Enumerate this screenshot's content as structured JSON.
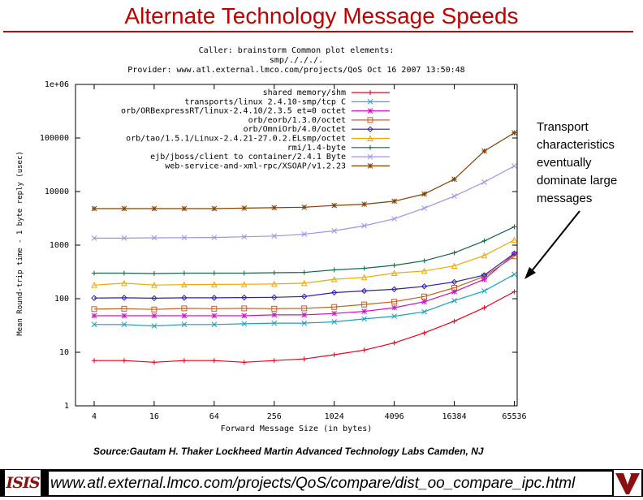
{
  "slide": {
    "title": "Alternate Technology Message Speeds",
    "callout": "Transport characteristics eventually dominate large messages",
    "source": "Source:Gautam H. Thaker Lockheed Martin Advanced Technology Labs Camden, NJ",
    "footer_url": "www.atl.external.lmco.com/projects/QoS/compare/dist_oo_compare_ipc.html",
    "footer_logo_text": "ISIS"
  },
  "chart_data": {
    "type": "line",
    "header_lines": [
      "Caller: brainstorm   Common plot elements:",
      "smp/./././.",
      "Provider: www.atl.external.lmco.com/projects/QoS  Oct 16 2007 13:50:48"
    ],
    "xlabel": "Forward Message Size (in bytes)",
    "ylabel": "Mean Round-trip time - 1 byte reply (usec)",
    "x_scale": "log2",
    "y_scale": "log10",
    "xlim": [
      2.6,
      70000
    ],
    "ylim": [
      1,
      1000000
    ],
    "x_ticks": [
      4,
      16,
      64,
      256,
      1024,
      4096,
      16384,
      65536
    ],
    "x_tick_labels": [
      "4",
      "16",
      "64",
      "256",
      "1024",
      "4096",
      "16384",
      "65536"
    ],
    "y_ticks": [
      1,
      10,
      100,
      1000,
      10000,
      100000,
      1000000
    ],
    "y_tick_labels": [
      "1",
      "10",
      "100",
      "1000",
      "10000",
      "100000",
      "1e+06"
    ],
    "legend_position": "top-left",
    "x": [
      4,
      8,
      16,
      32,
      64,
      128,
      256,
      512,
      1024,
      2048,
      4096,
      8192,
      16384,
      32768,
      65536
    ],
    "series": [
      {
        "name": "shared memory/shm",
        "color": "#e8001c",
        "marker": "plus",
        "values": [
          7,
          7,
          6.5,
          7,
          7,
          6.5,
          7,
          7.5,
          9,
          11,
          15,
          23,
          38,
          68,
          135
        ]
      },
      {
        "name": "transports/linux 2.4.10-smp/tcp C",
        "color": "#1a9fbf",
        "marker": "x",
        "values": [
          33,
          33,
          31,
          33,
          33,
          34,
          35,
          35,
          37,
          42,
          47,
          57,
          92,
          140,
          285
        ]
      },
      {
        "name": "orb/ORBexpressRT/linux-2.4.10/2.3.5 et=0 octet",
        "color": "#d010c8",
        "marker": "star",
        "values": [
          48,
          48,
          48,
          48,
          48,
          48,
          50,
          50,
          53,
          58,
          68,
          88,
          135,
          230,
          680
        ]
      },
      {
        "name": "orb/eorb/1.3.0/octet",
        "color": "#c06020",
        "marker": "square",
        "values": [
          64,
          65,
          63,
          66,
          65,
          66,
          65,
          66,
          70,
          78,
          88,
          110,
          160,
          260,
          620
        ]
      },
      {
        "name": "orb/OmniOrb/4.0/octet",
        "color": "#3020a8",
        "marker": "diamond",
        "values": [
          103,
          104,
          102,
          104,
          104,
          105,
          106,
          110,
          130,
          140,
          150,
          170,
          205,
          275,
          700
        ]
      },
      {
        "name": "orb/tao/1.5.1/Linux-2.4.21-27.0.2.ELsmp/octet",
        "color": "#f0a800",
        "marker": "triangle",
        "values": [
          180,
          195,
          180,
          183,
          185,
          186,
          188,
          195,
          230,
          250,
          300,
          330,
          410,
          640,
          1250
        ]
      },
      {
        "name": "rmi/1.4-byte",
        "color": "#106848",
        "marker": "plus",
        "values": [
          300,
          300,
          295,
          300,
          300,
          300,
          305,
          310,
          345,
          370,
          420,
          510,
          720,
          1200,
          2200
        ]
      },
      {
        "name": "ejb/jboss/client to container/2.4.1 Byte",
        "color": "#a090e8",
        "marker": "x",
        "values": [
          1350,
          1350,
          1370,
          1380,
          1390,
          1430,
          1480,
          1600,
          1850,
          2300,
          3100,
          4900,
          8200,
          15000,
          30000
        ]
      },
      {
        "name": "web-service-and-xml-rpc/XSOAP/v1.2.23",
        "color": "#804000",
        "marker": "star",
        "values": [
          4800,
          4800,
          4800,
          4800,
          4800,
          4900,
          5000,
          5100,
          5500,
          5800,
          6600,
          9000,
          17000,
          57000,
          125000
        ]
      }
    ]
  }
}
